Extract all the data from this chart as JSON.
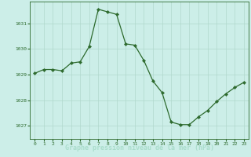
{
  "x": [
    0,
    1,
    2,
    3,
    4,
    5,
    6,
    7,
    8,
    9,
    10,
    11,
    12,
    13,
    14,
    15,
    16,
    17,
    18,
    19,
    20,
    21,
    22,
    23
  ],
  "y": [
    1029.05,
    1029.2,
    1029.2,
    1029.15,
    1029.45,
    1029.5,
    1030.1,
    1031.55,
    1031.45,
    1031.35,
    1030.2,
    1030.15,
    1029.55,
    1028.75,
    1028.3,
    1027.15,
    1027.05,
    1027.05,
    1027.35,
    1027.6,
    1027.95,
    1028.25,
    1028.5,
    1028.7
  ],
  "ylim": [
    1026.5,
    1031.85
  ],
  "yticks": [
    1027,
    1028,
    1029,
    1030,
    1031
  ],
  "xlim": [
    -0.5,
    23.5
  ],
  "xticks": [
    0,
    1,
    2,
    3,
    4,
    5,
    6,
    7,
    8,
    9,
    10,
    11,
    12,
    13,
    14,
    15,
    16,
    17,
    18,
    19,
    20,
    21,
    22,
    23
  ],
  "line_color": "#2d6a2d",
  "marker_color": "#2d6a2d",
  "bg_color": "#cceee8",
  "grid_color": "#b0d8cc",
  "tick_color": "#2d6a2d",
  "xlabel": "Graphe pression niveau de la mer (hPa)",
  "xlabel_color": "#aaddcc",
  "xlabel_bg": "#2d6a2d"
}
